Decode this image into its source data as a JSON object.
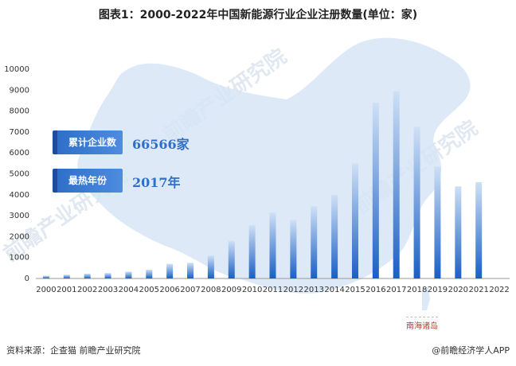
{
  "title": "图表1：2000-2022年中国新能源行业企业注册数量(单位：家)",
  "info": {
    "cumulative_label": "累计企业数",
    "cumulative_value": "66566家",
    "peak_label": "最热年份",
    "peak_value": "2017年"
  },
  "map_label": "南海诸岛",
  "footer": {
    "source": "资料来源：企查猫 前瞻产业研究院",
    "brand": "@前瞻经济学人APP"
  },
  "watermark": "前瞻产业研究院",
  "colors": {
    "bar_top": "#c9dcf4",
    "bar_bottom": "#1a5fc4",
    "map": "#d4e3f5",
    "accent": "#2f6fc7"
  },
  "chart_data": {
    "type": "bar",
    "title": "图表1：2000-2022年中国新能源行业企业注册数量(单位：家)",
    "xlabel": "",
    "ylabel": "",
    "ylim": [
      0,
      10000
    ],
    "yticks": [
      0,
      1000,
      2000,
      3000,
      4000,
      5000,
      6000,
      7000,
      8000,
      9000,
      10000
    ],
    "grid": false,
    "categories": [
      "2000",
      "2001",
      "2002",
      "2003",
      "2004",
      "2005",
      "2006",
      "2007",
      "2008",
      "2009",
      "2010",
      "2011",
      "2012",
      "2013",
      "2014",
      "2015",
      "2016",
      "2017",
      "2018",
      "2019",
      "2020",
      "2021",
      "2022"
    ],
    "values": [
      130,
      180,
      230,
      260,
      330,
      420,
      700,
      750,
      1100,
      1800,
      2550,
      3150,
      2800,
      3450,
      4000,
      5500,
      8400,
      8950,
      7250,
      5350,
      4400,
      4600,
      0
    ]
  }
}
